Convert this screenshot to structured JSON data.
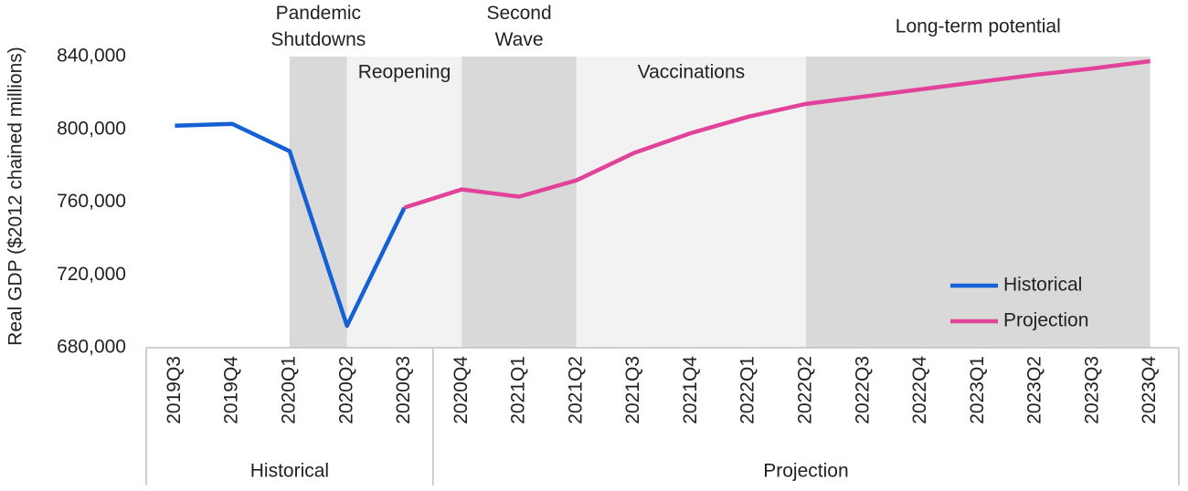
{
  "chart_data": {
    "type": "line",
    "y_label": "Real GDP ($2012 chained millions)",
    "categories": [
      "2019Q3",
      "2019Q4",
      "2020Q1",
      "2020Q2",
      "2020Q3",
      "2020Q4",
      "2021Q1",
      "2021Q2",
      "2021Q3",
      "2021Q4",
      "2022Q1",
      "2022Q2",
      "2022Q3",
      "2022Q4",
      "2023Q1",
      "2023Q2",
      "2023Q3",
      "2023Q4"
    ],
    "groups": [
      {
        "label": "Historical",
        "start": "2019Q3",
        "end": "2020Q3"
      },
      {
        "label": "Projection",
        "start": "2020Q4",
        "end": "2023Q4"
      }
    ],
    "regions": [
      {
        "lines": [
          "Pandemic",
          "Shutdowns"
        ],
        "start": "2020Q1",
        "end": "2020Q2",
        "shade": "#d9d9d9"
      },
      {
        "lines": [
          "Reopening"
        ],
        "start": "2020Q2",
        "end": "2020Q4",
        "shade": "#f2f2f2"
      },
      {
        "lines": [
          "Second",
          "Wave"
        ],
        "start": "2020Q4",
        "end": "2021Q2",
        "shade": "#d9d9d9"
      },
      {
        "lines": [
          "Vaccinations"
        ],
        "start": "2021Q2",
        "end": "2022Q2",
        "shade": "#f2f2f2"
      },
      {
        "lines": [
          "Long-term potential"
        ],
        "start": "2022Q2",
        "end": "2023Q4",
        "shade": "#d9d9d9"
      }
    ],
    "series": [
      {
        "name": "Historical",
        "color": "#1560d4",
        "values": [
          802000,
          803000,
          788000,
          692000,
          757000,
          null,
          null,
          null,
          null,
          null,
          null,
          null,
          null,
          null,
          null,
          null,
          null,
          null
        ]
      },
      {
        "name": "Projection",
        "color": "#e2439a",
        "values": [
          null,
          null,
          null,
          null,
          757000,
          767000,
          763000,
          772000,
          787000,
          798000,
          807000,
          814000,
          818000,
          822000,
          826000,
          830000,
          833500,
          837500
        ]
      }
    ],
    "ylim": [
      680000,
      840000
    ],
    "yticks": [
      {
        "value": 680000,
        "label": "680,000"
      },
      {
        "value": 720000,
        "label": "720,000"
      },
      {
        "value": 760000,
        "label": "760,000"
      },
      {
        "value": 800000,
        "label": "800,000"
      },
      {
        "value": 840000,
        "label": "840,000"
      }
    ],
    "legend": "lower right"
  }
}
